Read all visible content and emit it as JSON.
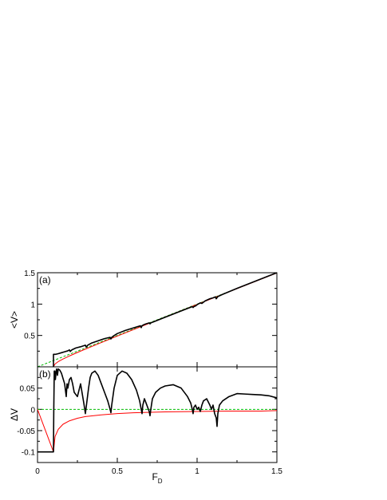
{
  "chart_data": [
    {
      "panel_label": "(a)",
      "type": "line",
      "xlabel": "",
      "ylabel": "<V>",
      "xlim": [
        0,
        1.5
      ],
      "ylim": [
        0,
        1.5
      ],
      "x_ticks": [
        0,
        0.5,
        1,
        1.5
      ],
      "y_ticks": [
        0.5,
        1,
        1.5
      ],
      "y_tick_labels": [
        "0.5",
        "1",
        "1.5"
      ],
      "series": [
        {
          "color": "#000000",
          "style": "solid",
          "x": [
            0.1,
            0.1,
            0.115,
            0.13,
            0.15,
            0.17,
            0.19,
            0.2,
            0.205,
            0.215,
            0.24,
            0.27,
            0.3,
            0.305,
            0.315,
            0.34,
            0.38,
            0.42,
            0.455,
            0.46,
            0.465,
            0.475,
            0.5,
            0.55,
            0.6,
            0.645,
            0.65,
            0.655,
            0.665,
            0.68,
            0.7,
            0.705,
            0.71,
            0.73,
            0.78,
            0.85,
            0.92,
            0.97,
            0.975,
            0.98,
            0.99,
            1.0,
            1.02,
            1.03,
            1.05,
            1.08,
            1.1,
            1.115,
            1.12,
            1.13,
            1.16,
            1.25,
            1.35,
            1.45,
            1.5
          ],
          "y": [
            0.0,
            0.2,
            0.2,
            0.21,
            0.225,
            0.24,
            0.255,
            0.27,
            0.245,
            0.27,
            0.3,
            0.32,
            0.345,
            0.315,
            0.345,
            0.38,
            0.415,
            0.45,
            0.47,
            0.445,
            0.47,
            0.49,
            0.53,
            0.58,
            0.62,
            0.655,
            0.625,
            0.655,
            0.67,
            0.685,
            0.7,
            0.685,
            0.7,
            0.72,
            0.77,
            0.84,
            0.91,
            0.96,
            0.945,
            0.96,
            0.97,
            0.99,
            1.02,
            1.01,
            1.05,
            1.085,
            1.1,
            1.115,
            1.085,
            1.12,
            1.155,
            1.25,
            1.35,
            1.45,
            1.5
          ]
        },
        {
          "color": "#ff0000",
          "style": "solid",
          "x": [
            0.1,
            0.11,
            0.13,
            0.16,
            0.2,
            0.25,
            0.3,
            0.4,
            0.5,
            0.6,
            0.8,
            1.0,
            1.2,
            1.4,
            1.5
          ],
          "y": [
            0.0,
            0.046,
            0.083,
            0.125,
            0.173,
            0.229,
            0.283,
            0.387,
            0.49,
            0.592,
            0.794,
            0.995,
            1.196,
            1.396,
            1.497
          ]
        },
        {
          "color": "#00bb00",
          "style": "dashed",
          "x": [
            0,
            1.5
          ],
          "y": [
            0,
            1.5
          ]
        }
      ]
    },
    {
      "panel_label": "(b)",
      "type": "line",
      "xlabel": "F_D",
      "ylabel": "ΔV",
      "xlim": [
        0,
        1.5
      ],
      "ylim": [
        -0.125,
        0.1
      ],
      "x_ticks": [
        0,
        0.5,
        1,
        1.5
      ],
      "x_tick_labels": [
        "0",
        "0.5",
        "1",
        "1.5"
      ],
      "y_ticks": [
        -0.1,
        -0.05,
        0,
        0.05
      ],
      "y_tick_labels": [
        "-0.1",
        "-0.05",
        "0",
        "0.05"
      ],
      "series": [
        {
          "color": "#000000",
          "style": "solid",
          "x": [
            0.0,
            0.1,
            0.102,
            0.105,
            0.108,
            0.112,
            0.117,
            0.12,
            0.125,
            0.13,
            0.14,
            0.15,
            0.17,
            0.18,
            0.185,
            0.19,
            0.2,
            0.21,
            0.22,
            0.23,
            0.25,
            0.27,
            0.29,
            0.3,
            0.31,
            0.32,
            0.33,
            0.34,
            0.36,
            0.38,
            0.4,
            0.42,
            0.44,
            0.455,
            0.46,
            0.465,
            0.48,
            0.5,
            0.53,
            0.56,
            0.59,
            0.62,
            0.64,
            0.65,
            0.655,
            0.66,
            0.67,
            0.68,
            0.7,
            0.705,
            0.71,
            0.72,
            0.74,
            0.77,
            0.8,
            0.85,
            0.9,
            0.94,
            0.96,
            0.97,
            0.975,
            0.98,
            0.99,
            1.0,
            1.01,
            1.02,
            1.03,
            1.04,
            1.06,
            1.08,
            1.09,
            1.1,
            1.11,
            1.12,
            1.125,
            1.13,
            1.14,
            1.16,
            1.2,
            1.25,
            1.3,
            1.35,
            1.4,
            1.45,
            1.5
          ],
          "y": [
            -0.1,
            -0.1,
            0.0,
            0.09,
            0.09,
            0.07,
            0.09,
            0.095,
            0.08,
            0.095,
            0.092,
            0.085,
            0.06,
            0.03,
            0.06,
            0.05,
            0.07,
            0.075,
            0.06,
            0.04,
            0.03,
            0.06,
            0.015,
            -0.01,
            0.02,
            0.05,
            0.075,
            0.085,
            0.09,
            0.08,
            0.06,
            0.04,
            0.02,
            0.0,
            -0.008,
            0.01,
            0.05,
            0.08,
            0.09,
            0.085,
            0.07,
            0.045,
            0.02,
            0.0,
            -0.01,
            0.01,
            0.025,
            0.015,
            -0.005,
            -0.015,
            0.0,
            0.025,
            0.04,
            0.05,
            0.055,
            0.058,
            0.05,
            0.03,
            0.015,
            0.0,
            -0.01,
            0.005,
            0.01,
            0.0,
            0.005,
            -0.005,
            0.01,
            0.02,
            0.025,
            0.01,
            0.0,
            0.01,
            -0.01,
            -0.02,
            -0.04,
            -0.01,
            0.01,
            0.02,
            0.03,
            0.037,
            0.036,
            0.035,
            0.034,
            0.032,
            0.027
          ]
        },
        {
          "color": "#ff0000",
          "style": "solid",
          "x": [
            0.0,
            0.1,
            0.11,
            0.13,
            0.16,
            0.2,
            0.25,
            0.3,
            0.4,
            0.5,
            0.6,
            0.8,
            1.0,
            1.2,
            1.4,
            1.5
          ],
          "y": [
            0.0,
            -0.1,
            -0.064,
            -0.047,
            -0.035,
            -0.027,
            -0.021,
            -0.017,
            -0.013,
            -0.01,
            -0.008,
            -0.006,
            -0.005,
            -0.004,
            -0.004,
            -0.003
          ]
        },
        {
          "color": "#00bb00",
          "style": "dashed",
          "x": [
            0,
            1.5
          ],
          "y": [
            0,
            0
          ]
        }
      ]
    }
  ]
}
